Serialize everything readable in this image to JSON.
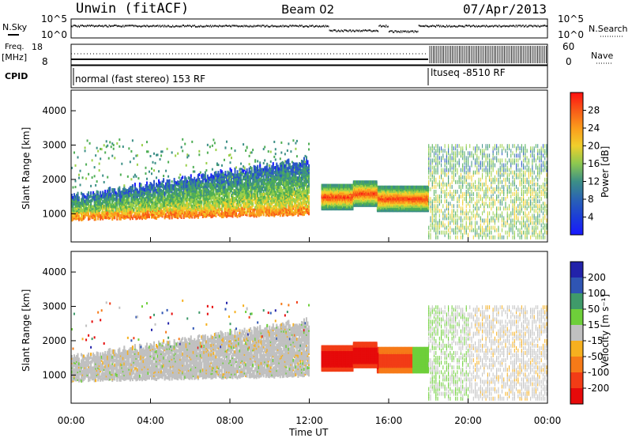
{
  "header": {
    "radar_mode": "Unwin (fitACF)",
    "beam": "Beam 02",
    "date": "07/Apr/2013"
  },
  "side_labels": {
    "nsky": "N.Sky",
    "nsearch": "N.Search",
    "freq": "Freq.",
    "freq_unit": "[MHz]",
    "nave": "Nave",
    "cpid": "CPID"
  },
  "noise_panel": {
    "left_ticks": [
      "10^5",
      "10^0"
    ],
    "right_ticks": [
      "10^5",
      "10^0"
    ]
  },
  "freq_panel": {
    "left_ticks": [
      "18",
      "8"
    ],
    "right_ticks": [
      "60",
      "0"
    ]
  },
  "cpid_panel": {
    "modes": [
      {
        "label": "normal (fast stereo) 153 RF",
        "start_hour": 0,
        "end_hour": 18
      },
      {
        "label": "ltuseq -8510 RF",
        "start_hour": 18,
        "end_hour": 24
      }
    ]
  },
  "time_axis": {
    "label": "Time UT",
    "ticks": [
      "00:00",
      "04:00",
      "08:00",
      "12:00",
      "16:00",
      "20:00",
      "00:00"
    ]
  },
  "chart_data": [
    {
      "type": "heatmap",
      "name": "power",
      "xlabel": "Time UT",
      "ylabel": "Slant Range [km]",
      "xlim": [
        0,
        24
      ],
      "ylim": [
        180,
        4600
      ],
      "yticks": [
        "1000",
        "2000",
        "3000",
        "4000"
      ],
      "colorbar": {
        "label": "Power [dB]",
        "range": [
          0,
          32
        ],
        "ticks": [
          "4",
          "8",
          "12",
          "16",
          "20",
          "24",
          "28"
        ],
        "colors": [
          "#1818ff",
          "#2a55c8",
          "#3c8f86",
          "#4fae55",
          "#9ad04a",
          "#f0cf2c",
          "#fb9c1c",
          "#f85a18",
          "#ff1010"
        ]
      },
      "features": [
        {
          "desc": "main band",
          "t_start": 0,
          "t_end": 12,
          "range_start_km": 850,
          "range_end_km": 1550,
          "power_db": 18
        },
        {
          "desc": "strong patch",
          "t_start": 12.6,
          "t_end": 14.2,
          "range_km": 1500,
          "power_db": 28
        },
        {
          "desc": "strong patch",
          "t_start": 15.4,
          "t_end": 18,
          "range_km": 1450,
          "power_db": 28
        },
        {
          "desc": "ltuseq sparse echoes",
          "t_start": 18,
          "t_end": 24,
          "range_min_km": 300,
          "range_max_km": 3000,
          "power_db": 14
        }
      ]
    },
    {
      "type": "heatmap",
      "name": "velocity",
      "xlabel": "Time UT",
      "ylabel": "Slant Range [km]",
      "xlim": [
        0,
        24
      ],
      "ylim": [
        180,
        4600
      ],
      "yticks": [
        "1000",
        "2000",
        "3000",
        "4000"
      ],
      "colorbar": {
        "label": "Velocity [m s⁻¹]",
        "ticks": [
          "200",
          "100",
          "50",
          "15",
          "-15",
          "-50",
          "-100",
          "-200"
        ],
        "colors": [
          "#2222aa",
          "#2f55b4",
          "#3f9a6a",
          "#6ecf3a",
          "#c0c0c0",
          "#f6b01f",
          "#f67a18",
          "#f23c16",
          "#e60a0a"
        ]
      },
      "features": [
        {
          "desc": "ground scatter band",
          "t_start": 0,
          "t_end": 12,
          "range_start_km": 850,
          "range_end_km": 1550,
          "velocity": 0
        },
        {
          "desc": "strong negative velocity",
          "t_start": 12.6,
          "t_end": 15.5,
          "range_km": 1500,
          "velocity": -200
        },
        {
          "desc": "negative velocity",
          "t_start": 15.5,
          "t_end": 17.2,
          "range_km": 1500,
          "velocity": -100
        },
        {
          "desc": "positive velocity stripes",
          "t_start": 17.2,
          "t_end": 20,
          "range_km": 1600,
          "velocity": 50
        }
      ]
    }
  ]
}
